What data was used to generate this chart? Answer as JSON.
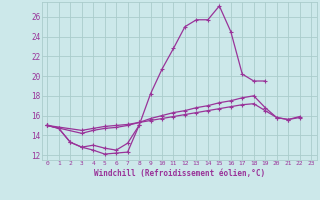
{
  "background_color": "#cce8ea",
  "grid_color": "#aacccc",
  "line_color": "#993399",
  "marker": "+",
  "xlabel": "Windchill (Refroidissement éolien,°C)",
  "xlabel_color": "#993399",
  "ylim": [
    11.5,
    27.5
  ],
  "xlim": [
    -0.5,
    23.5
  ],
  "yticks": [
    12,
    14,
    16,
    18,
    20,
    22,
    24,
    26
  ],
  "xticks": [
    0,
    1,
    2,
    3,
    4,
    5,
    6,
    7,
    8,
    9,
    10,
    11,
    12,
    13,
    14,
    15,
    16,
    17,
    18,
    19,
    20,
    21,
    22,
    23
  ],
  "series": [
    {
      "x": [
        0,
        1,
        2,
        3,
        4,
        5,
        6,
        7,
        8,
        9,
        10,
        11,
        12,
        13,
        14,
        15,
        16,
        17,
        18,
        19
      ],
      "y": [
        15.0,
        14.7,
        13.3,
        12.8,
        12.5,
        12.1,
        12.2,
        12.3,
        15.0,
        18.2,
        20.7,
        22.8,
        25.0,
        25.7,
        25.7,
        27.1,
        24.5,
        20.2,
        19.5,
        19.5
      ]
    },
    {
      "x": [
        0,
        1,
        2,
        3,
        4,
        5,
        6,
        7,
        8
      ],
      "y": [
        15.0,
        14.7,
        13.3,
        12.8,
        13.0,
        12.7,
        12.5,
        13.2,
        15.0
      ]
    },
    {
      "x": [
        0,
        3,
        4,
        5,
        6,
        7,
        8,
        9,
        10,
        11,
        12,
        13,
        14,
        15,
        16,
        17,
        18,
        19,
        20,
        21,
        22
      ],
      "y": [
        15.0,
        14.2,
        14.5,
        14.7,
        14.8,
        15.0,
        15.3,
        15.7,
        16.0,
        16.3,
        16.5,
        16.8,
        17.0,
        17.3,
        17.5,
        17.8,
        18.0,
        16.8,
        15.8,
        15.6,
        15.8
      ]
    },
    {
      "x": [
        0,
        3,
        4,
        5,
        6,
        7,
        8,
        9,
        10,
        11,
        12,
        13,
        14,
        15,
        16,
        17,
        18,
        19,
        20,
        21,
        22
      ],
      "y": [
        15.0,
        14.5,
        14.7,
        14.9,
        15.0,
        15.1,
        15.3,
        15.5,
        15.7,
        15.9,
        16.1,
        16.3,
        16.5,
        16.7,
        16.9,
        17.1,
        17.2,
        16.5,
        15.8,
        15.6,
        15.9
      ]
    }
  ]
}
